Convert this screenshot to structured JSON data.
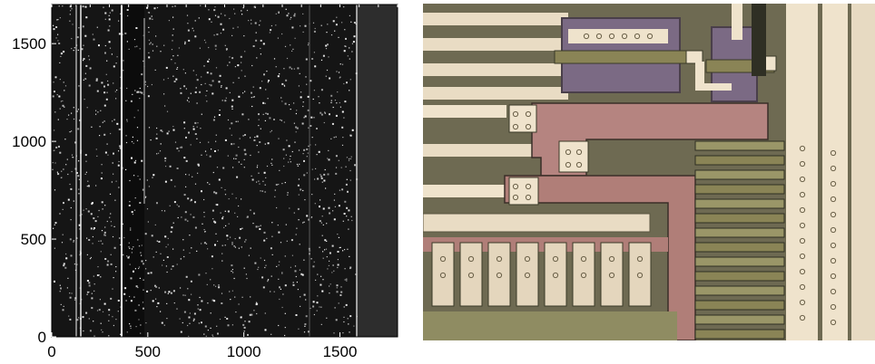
{
  "left_image": {
    "x_tick_labels": [
      "0",
      "500",
      "1000",
      "1500"
    ],
    "y_tick_labels": [
      "0",
      "500",
      "1000",
      "1500"
    ],
    "x_range": [
      0,
      1800
    ],
    "y_range": [
      0,
      1700
    ],
    "x_ticks": [
      0,
      500,
      1000,
      1500
    ],
    "y_ticks": [
      0,
      500,
      1000,
      1500
    ],
    "colors": {
      "background": "#141414",
      "speckle": "#f2f2f2",
      "streak": "#e6e6e6"
    }
  },
  "right_image": {
    "description_icon": "microchip-die-photo",
    "colors": {
      "substrate": "#6e6a52",
      "metal": "#efe3cc",
      "poly": "#b07e78",
      "diffusion": "#8f8c62",
      "via_box": "#7c6b86"
    }
  }
}
